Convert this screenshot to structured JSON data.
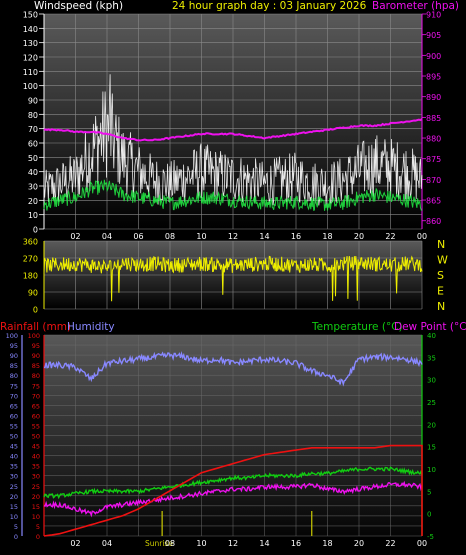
{
  "header": {
    "left_label": "Windspeed (kph)",
    "center_label": "24 hour graph day : 03 January 2026",
    "right_label": "Barometer (hpa)"
  },
  "bottom_header": {
    "rainfall_label": "Rainfall (mm)",
    "humidity_label": "Humidity",
    "temperature_label": "Temperature (°C)",
    "dewpoint_label": "Dew Point (°C)"
  },
  "colors": {
    "windspeed": "#ffffff",
    "wind_avg": "#22ee44",
    "barometer": "#ee11ee",
    "direction": "#eeee00",
    "rain": "#ee1111",
    "humidity": "#8888ff",
    "temperature": "#11cc11",
    "dewpoint": "#ee11ee",
    "sun_marker": "#cccc00"
  },
  "chart_data": [
    {
      "type": "line",
      "name": "wind-barometer",
      "x_ticks": [
        "02",
        "04",
        "06",
        "08",
        "10",
        "12",
        "14",
        "16",
        "18",
        "20",
        "22",
        "00"
      ],
      "ylim": [
        0,
        150
      ],
      "y_ticks": [
        0,
        10,
        20,
        30,
        40,
        50,
        60,
        70,
        80,
        90,
        100,
        110,
        120,
        130,
        140,
        150
      ],
      "y2lim": [
        858,
        910
      ],
      "y2_ticks": [
        860,
        865,
        870,
        875,
        880,
        885,
        890,
        895,
        900,
        905,
        910
      ],
      "series": [
        {
          "name": "Windspeed (kph)",
          "x": [
            0,
            1,
            2,
            3,
            4,
            5,
            6,
            7,
            8,
            9,
            10,
            11,
            12,
            13,
            14,
            15,
            16,
            17,
            18,
            19,
            20,
            21,
            22,
            23,
            24
          ],
          "values": [
            30,
            35,
            40,
            60,
            78,
            55,
            45,
            38,
            35,
            40,
            45,
            42,
            40,
            38,
            35,
            38,
            40,
            36,
            35,
            38,
            45,
            50,
            48,
            45,
            38
          ],
          "note_peak": 108
        },
        {
          "name": "Wind average",
          "x": [
            0,
            1,
            2,
            3,
            4,
            5,
            6,
            7,
            8,
            9,
            10,
            11,
            12,
            13,
            14,
            15,
            16,
            17,
            18,
            19,
            20,
            21,
            22,
            23,
            24
          ],
          "values": [
            17,
            20,
            22,
            28,
            30,
            24,
            22,
            20,
            18,
            20,
            22,
            22,
            20,
            19,
            18,
            18,
            19,
            18,
            17,
            18,
            22,
            24,
            22,
            20,
            17
          ]
        },
        {
          "name": "Barometer (hpa)",
          "x": [
            0,
            1,
            2,
            3,
            4,
            5,
            6,
            7,
            8,
            9,
            10,
            11,
            12,
            13,
            14,
            15,
            16,
            17,
            18,
            19,
            20,
            21,
            22,
            23,
            24
          ],
          "values": [
            882,
            882,
            881.5,
            881.5,
            881,
            880,
            879.5,
            879.5,
            880,
            880.5,
            881,
            881,
            881,
            880.5,
            880,
            880.5,
            881,
            881.5,
            882,
            882.5,
            883,
            883,
            883.5,
            884,
            884.5
          ]
        }
      ]
    },
    {
      "type": "scatter",
      "name": "wind-direction",
      "x_ticks": [
        "02",
        "04",
        "06",
        "08",
        "10",
        "12",
        "14",
        "16",
        "18",
        "20",
        "22",
        "00"
      ],
      "ylim": [
        0,
        360
      ],
      "y_ticks": [
        0,
        90,
        180,
        270,
        360
      ],
      "compass_labels": [
        "N",
        "W",
        "S",
        "E",
        "N"
      ],
      "series": [
        {
          "name": "Wind direction",
          "x": [
            0,
            1,
            2,
            3,
            4,
            5,
            6,
            7,
            8,
            9,
            10,
            11,
            12,
            13,
            14,
            15,
            16,
            17,
            18,
            19,
            20,
            21,
            22,
            23,
            24
          ],
          "values": [
            230,
            235,
            240,
            230,
            220,
            245,
            235,
            240,
            230,
            235,
            240,
            235,
            230,
            235,
            240,
            238,
            230,
            235,
            230,
            240,
            245,
            238,
            232,
            240,
            235
          ]
        }
      ]
    },
    {
      "type": "line",
      "name": "rain-humidity-temperature",
      "x_ticks": [
        "02",
        "04",
        "Sunrise",
        "08",
        "10",
        "12",
        "14",
        "16",
        "18",
        "20",
        "22",
        "00"
      ],
      "ylim_left": [
        0,
        100
      ],
      "y_ticks_left": [
        0,
        5,
        10,
        15,
        20,
        25,
        30,
        35,
        40,
        45,
        50,
        55,
        60,
        65,
        70,
        75,
        80,
        85,
        90,
        95,
        100
      ],
      "ylim_rain": [
        0,
        40
      ],
      "ylim_right": [
        -5,
        40
      ],
      "y_ticks_right": [
        -5,
        0,
        5,
        10,
        15,
        20,
        25,
        30,
        35,
        40
      ],
      "series": [
        {
          "name": "Humidity",
          "x": [
            0,
            1,
            2,
            3,
            4,
            5,
            6,
            7,
            8,
            9,
            10,
            11,
            12,
            13,
            14,
            15,
            16,
            17,
            18,
            19,
            20,
            21,
            22,
            23,
            24
          ],
          "values": [
            85,
            85,
            84,
            78,
            86,
            87,
            88,
            89,
            90,
            89,
            87,
            88,
            86,
            87,
            88,
            87,
            86,
            82,
            80,
            76,
            88,
            89,
            89,
            88,
            86
          ]
        },
        {
          "name": "Rainfall (mm)",
          "x": [
            0,
            1,
            2,
            3,
            4,
            5,
            6,
            7,
            8,
            9,
            10,
            11,
            12,
            13,
            14,
            15,
            16,
            17,
            18,
            19,
            20,
            21,
            22,
            23,
            24
          ],
          "values": [
            0,
            0.5,
            1.5,
            2.5,
            3.5,
            4.5,
            6,
            8,
            10,
            12,
            14,
            15,
            16,
            17,
            18,
            18.5,
            19,
            19.5,
            19.5,
            19.5,
            19.5,
            19.5,
            20,
            20,
            20
          ]
        },
        {
          "name": "Temperature (°C)",
          "x": [
            0,
            1,
            2,
            3,
            4,
            5,
            6,
            7,
            8,
            9,
            10,
            11,
            12,
            13,
            14,
            15,
            16,
            17,
            18,
            19,
            20,
            21,
            22,
            23,
            24
          ],
          "values": [
            4,
            4,
            4.5,
            5,
            5,
            5,
            5,
            5.5,
            6,
            6.5,
            7,
            7.5,
            8,
            8,
            8.5,
            8.5,
            8.5,
            9,
            9,
            9.5,
            10,
            10,
            10,
            9.5,
            9
          ]
        },
        {
          "name": "Dew Point (°C)",
          "x": [
            0,
            1,
            2,
            3,
            4,
            5,
            6,
            7,
            8,
            9,
            10,
            11,
            12,
            13,
            14,
            15,
            16,
            17,
            18,
            19,
            20,
            21,
            22,
            23,
            24
          ],
          "values": [
            2,
            2,
            1,
            0,
            1.5,
            2,
            2.5,
            3,
            3.5,
            4,
            4.5,
            5,
            5.5,
            5.5,
            6,
            6,
            6,
            6.5,
            5.5,
            5,
            5.5,
            6,
            6.5,
            6.5,
            6
          ]
        }
      ],
      "sun_markers_x": [
        7.5,
        17
      ]
    }
  ]
}
